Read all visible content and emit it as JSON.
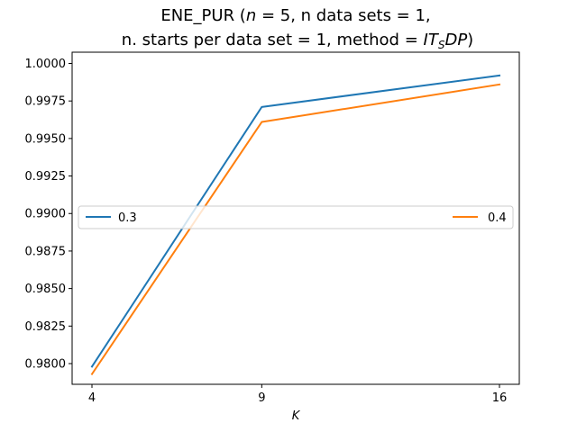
{
  "chart_data": {
    "type": "line",
    "title_lines": [
      "ENE_PUR (n = 5, n data sets = 1,",
      "n. starts per data set = 1, method = IT_SDP)"
    ],
    "x": [
      4,
      9,
      16
    ],
    "x_ticks": [
      "4",
      "9",
      "16"
    ],
    "xlabel": "K",
    "ylabel": "",
    "ylim": [
      0.97862,
      1.00075
    ],
    "y_ticks": [
      "0.9800",
      "0.9825",
      "0.9850",
      "0.9875",
      "0.9900",
      "0.9925",
      "0.9950",
      "0.9975",
      "1.0000"
    ],
    "y_tick_values": [
      0.98,
      0.9825,
      0.985,
      0.9875,
      0.99,
      0.9925,
      0.995,
      0.9975,
      1.0
    ],
    "series": [
      {
        "name": "0.3",
        "color": "#1f77b4",
        "values": [
          0.9798,
          0.9971,
          0.9992
        ]
      },
      {
        "name": "0.4",
        "color": "#ff7f0e",
        "values": [
          0.9793,
          0.9961,
          0.9986
        ]
      }
    ],
    "legend": {
      "placement": "center",
      "entries": [
        "0.3",
        "0.4"
      ]
    }
  }
}
